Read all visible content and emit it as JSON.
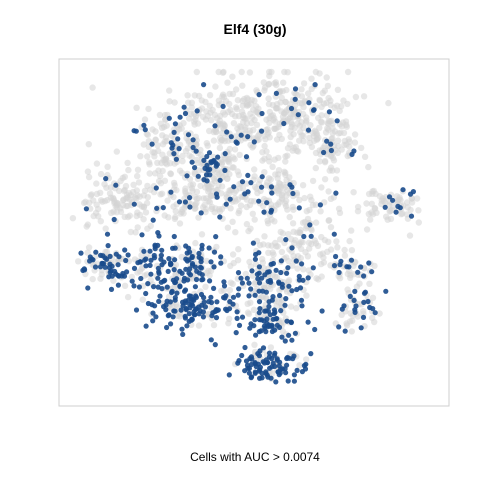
{
  "chart_data": {
    "type": "scatter",
    "title": "Elf4 (30g)",
    "xlabel": "Cells with AUC > 0.0074",
    "ylabel": "",
    "grid": false,
    "legend": "none",
    "series": [
      {
        "name": "",
        "color": "#d3d3d3"
      },
      {
        "name": "",
        "color": "#1a4b8c"
      }
    ]
  }
}
